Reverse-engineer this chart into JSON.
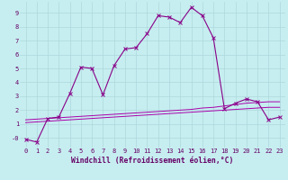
{
  "xlabel": "Windchill (Refroidissement éolien,°C)",
  "background_color": "#c6eef0",
  "grid_color": "#aed8dc",
  "line_color": "#880088",
  "line_color2": "#aa00aa",
  "x_values": [
    0,
    1,
    2,
    3,
    4,
    5,
    6,
    7,
    8,
    9,
    10,
    11,
    12,
    13,
    14,
    15,
    16,
    17,
    18,
    19,
    20,
    21,
    22,
    23
  ],
  "series1": [
    -0.1,
    -0.3,
    1.4,
    1.5,
    3.2,
    5.1,
    5.0,
    3.1,
    5.2,
    6.4,
    6.5,
    7.5,
    8.8,
    8.7,
    8.3,
    9.4,
    8.8,
    7.2,
    2.1,
    2.5,
    2.8,
    2.6,
    1.3,
    1.5
  ],
  "series2": [
    1.3,
    1.35,
    1.4,
    1.45,
    1.5,
    1.55,
    1.6,
    1.65,
    1.7,
    1.75,
    1.8,
    1.85,
    1.9,
    1.95,
    2.0,
    2.05,
    2.15,
    2.2,
    2.3,
    2.4,
    2.5,
    2.55,
    2.6,
    2.6
  ],
  "series3": [
    1.1,
    1.15,
    1.2,
    1.25,
    1.3,
    1.35,
    1.4,
    1.45,
    1.5,
    1.55,
    1.6,
    1.65,
    1.7,
    1.75,
    1.8,
    1.85,
    1.9,
    1.95,
    2.0,
    2.05,
    2.1,
    2.15,
    2.2,
    2.2
  ],
  "ylim": [
    -0.7,
    9.8
  ],
  "xlim": [
    -0.5,
    23.5
  ],
  "yticks": [
    0,
    1,
    2,
    3,
    4,
    5,
    6,
    7,
    8,
    9
  ],
  "ytick_labels": [
    "-0",
    "1",
    "2",
    "3",
    "4",
    "5",
    "6",
    "7",
    "8",
    "9"
  ],
  "xtick_labels": [
    "0",
    "1",
    "2",
    "3",
    "4",
    "5",
    "6",
    "7",
    "8",
    "9",
    "10",
    "11",
    "12",
    "13",
    "14",
    "15",
    "16",
    "17",
    "18",
    "19",
    "20",
    "21",
    "22",
    "23"
  ],
  "tick_fontsize": 5.0,
  "label_fontsize": 5.8
}
